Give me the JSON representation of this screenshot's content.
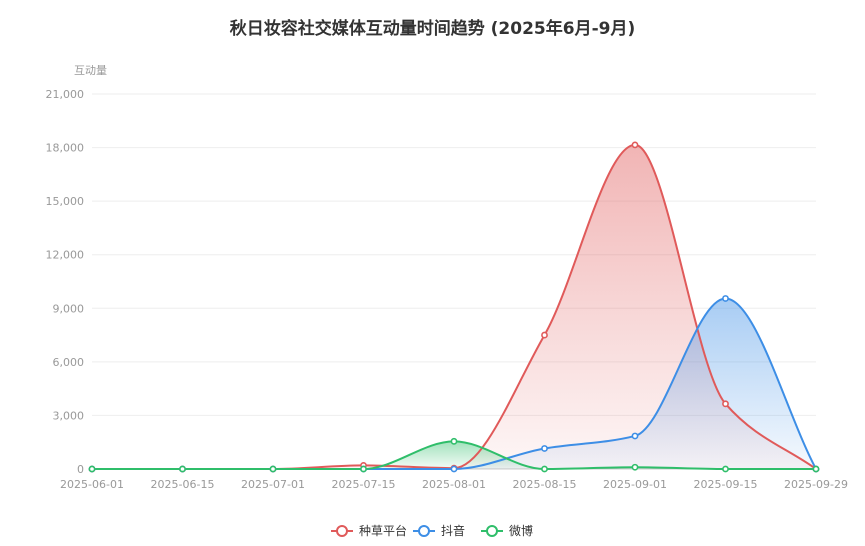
{
  "chart_data": {
    "type": "area",
    "title": "秋日妆容社交媒体互动量时间趋势 (2025年6月-9月)",
    "ylabel": "互动量",
    "xlabel": "",
    "ylim": [
      0,
      21000
    ],
    "y_ticks": [
      "0",
      "3,000",
      "6,000",
      "9,000",
      "12,000",
      "15,000",
      "18,000",
      "21,000"
    ],
    "x_ticks": [
      "2025-06-01",
      "2025-06-15",
      "2025-07-01",
      "2025-07-15",
      "2025-08-01",
      "2025-08-15",
      "2025-09-01",
      "2025-09-15",
      "2025-09-29"
    ],
    "grid": true,
    "legend_position": "bottom",
    "series": [
      {
        "name": "种草平台",
        "color": "#e05a5a",
        "values": [
          0,
          0,
          0,
          200,
          50,
          7500,
          18150,
          3650,
          0
        ]
      },
      {
        "name": "抖音",
        "color": "#3d8ee6",
        "values": [
          0,
          0,
          0,
          0,
          0,
          1150,
          1850,
          9550,
          0
        ]
      },
      {
        "name": "微博",
        "color": "#2fbe6a",
        "values": [
          0,
          0,
          0,
          0,
          1550,
          0,
          100,
          0,
          0
        ]
      }
    ]
  }
}
